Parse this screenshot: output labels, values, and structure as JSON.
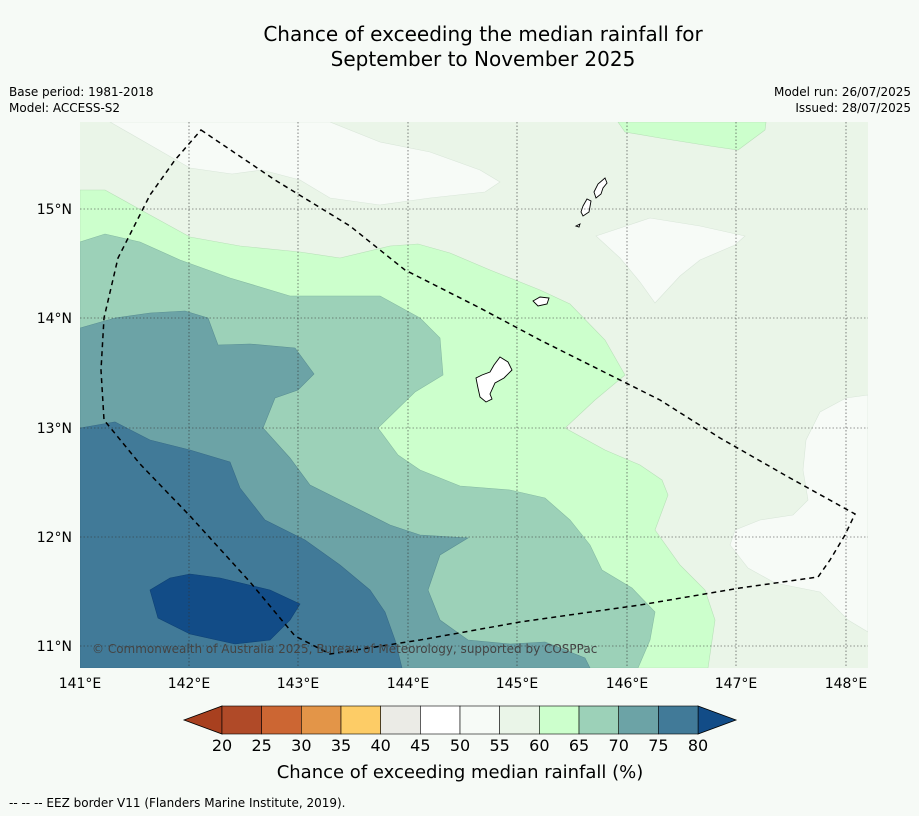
{
  "title_line1": "Chance of exceeding the median rainfall for",
  "title_line2": "September to November 2025",
  "meta_left": [
    "Base period: 1981-2018",
    "Model: ACCESS-S2"
  ],
  "meta_right": [
    "Model run: 26/07/2025",
    "Issued: 28/07/2025"
  ],
  "copyright": "© Commonwealth of Australia 2025, Bureau of Meteorology, supported by COSPPac",
  "lon_ticks": [
    "141°E",
    "142°E",
    "143°E",
    "144°E",
    "145°E",
    "146°E",
    "147°E",
    "148°E"
  ],
  "lat_ticks": [
    "15°N",
    "14°N",
    "13°N",
    "12°N",
    "11°N"
  ],
  "colorbar": {
    "title": "Chance of exceeding median rainfall (%)",
    "labels": [
      "20",
      "25",
      "30",
      "35",
      "40",
      "45",
      "50",
      "55",
      "60",
      "65",
      "70",
      "75",
      "80"
    ],
    "colors": [
      "#b04a28",
      "#cc6633",
      "#e39548",
      "#fdcc66",
      "#ebebe6",
      "#ffffff",
      "#f7fbf7",
      "#eaf5e8",
      "#ccffcc",
      "#9cd1b8",
      "#6ca3a6",
      "#417a98"
    ],
    "under_color": "#a8401f",
    "over_color": "#124c87"
  },
  "legend_note": "--  --  -- EEZ border V11 (Flanders Marine Institute, 2019)."
}
